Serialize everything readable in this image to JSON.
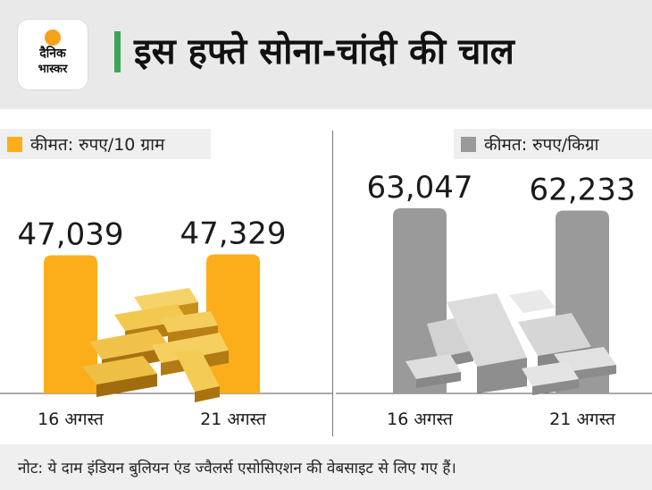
{
  "header": {
    "title": "इस हफ्ते सोना-चांदी की चाल",
    "logo_line1": "दैनिक",
    "logo_line2": "भास्कर"
  },
  "colors": {
    "gold": "#fbad1a",
    "silver": "#9a9a9a",
    "accent": "#3aa655"
  },
  "chart_data": [
    {
      "type": "bar",
      "legend": "कीमत: रुपए/10 ग्राम",
      "categories": [
        "16 अगस्त",
        "21 अगस्त"
      ],
      "values": [
        47039,
        47329
      ],
      "value_labels": [
        "47,039",
        "47,329"
      ],
      "ylim": [
        0,
        70000
      ]
    },
    {
      "type": "bar",
      "legend": "कीमत: रुपए/किग्रा",
      "categories": [
        "16 अगस्त",
        "21 अगस्त"
      ],
      "values": [
        63047,
        62233
      ],
      "value_labels": [
        "63,047",
        "62,233"
      ],
      "ylim": [
        0,
        70000
      ]
    }
  ],
  "note": "नोट: ये दाम इंडियन बुलियन एंड ज्वैलर्स एसोसिएशन की वेबसाइट से लिए गए हैं।"
}
